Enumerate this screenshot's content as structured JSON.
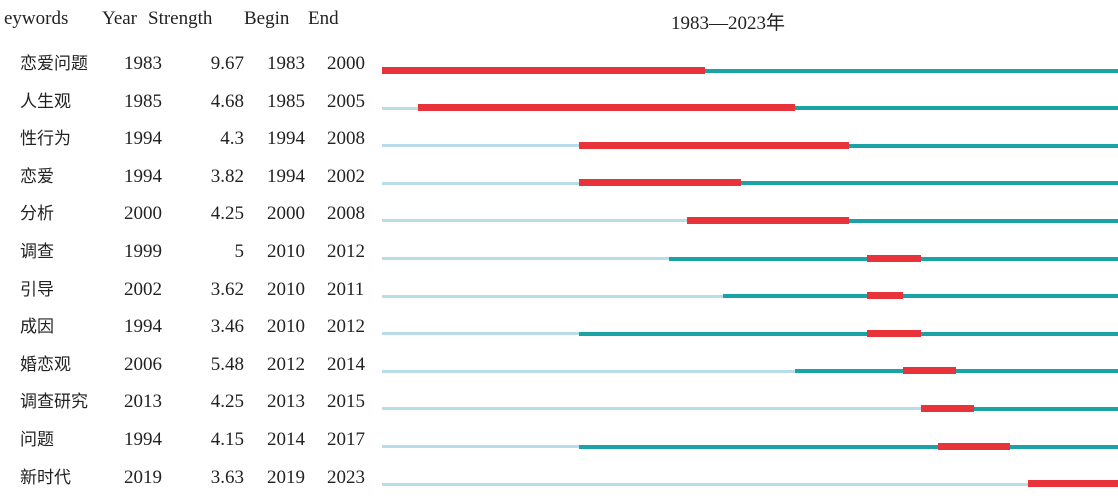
{
  "header": {
    "keywords": "eywords",
    "year": "Year",
    "strength": "Strength",
    "begin": "Begin",
    "end": "End",
    "range": "1983—2023年"
  },
  "timeline": {
    "start": 1983,
    "end": 2023
  },
  "colors": {
    "before": "#b9dde8",
    "active": "#1aa2a6",
    "burst": "#e8333b"
  },
  "rows": [
    {
      "keyword": "恋爱问题",
      "year": 1983,
      "strength": "9.67",
      "begin": 1983,
      "end": 2000
    },
    {
      "keyword": "人生观",
      "year": 1985,
      "strength": "4.68",
      "begin": 1985,
      "end": 2005
    },
    {
      "keyword": "性行为",
      "year": 1994,
      "strength": "4.3",
      "begin": 1994,
      "end": 2008
    },
    {
      "keyword": "恋爱",
      "year": 1994,
      "strength": "3.82",
      "begin": 1994,
      "end": 2002
    },
    {
      "keyword": "分析",
      "year": 2000,
      "strength": "4.25",
      "begin": 2000,
      "end": 2008
    },
    {
      "keyword": "调查",
      "year": 1999,
      "strength": "5",
      "begin": 2010,
      "end": 2012
    },
    {
      "keyword": "引导",
      "year": 2002,
      "strength": "3.62",
      "begin": 2010,
      "end": 2011
    },
    {
      "keyword": "成因",
      "year": 1994,
      "strength": "3.46",
      "begin": 2010,
      "end": 2012
    },
    {
      "keyword": "婚恋观",
      "year": 2006,
      "strength": "5.48",
      "begin": 2012,
      "end": 2014
    },
    {
      "keyword": "调查研究",
      "year": 2013,
      "strength": "4.25",
      "begin": 2013,
      "end": 2015
    },
    {
      "keyword": "问题",
      "year": 1994,
      "strength": "4.15",
      "begin": 2014,
      "end": 2017
    },
    {
      "keyword": "新时代",
      "year": 2019,
      "strength": "3.63",
      "begin": 2019,
      "end": 2023
    }
  ]
}
